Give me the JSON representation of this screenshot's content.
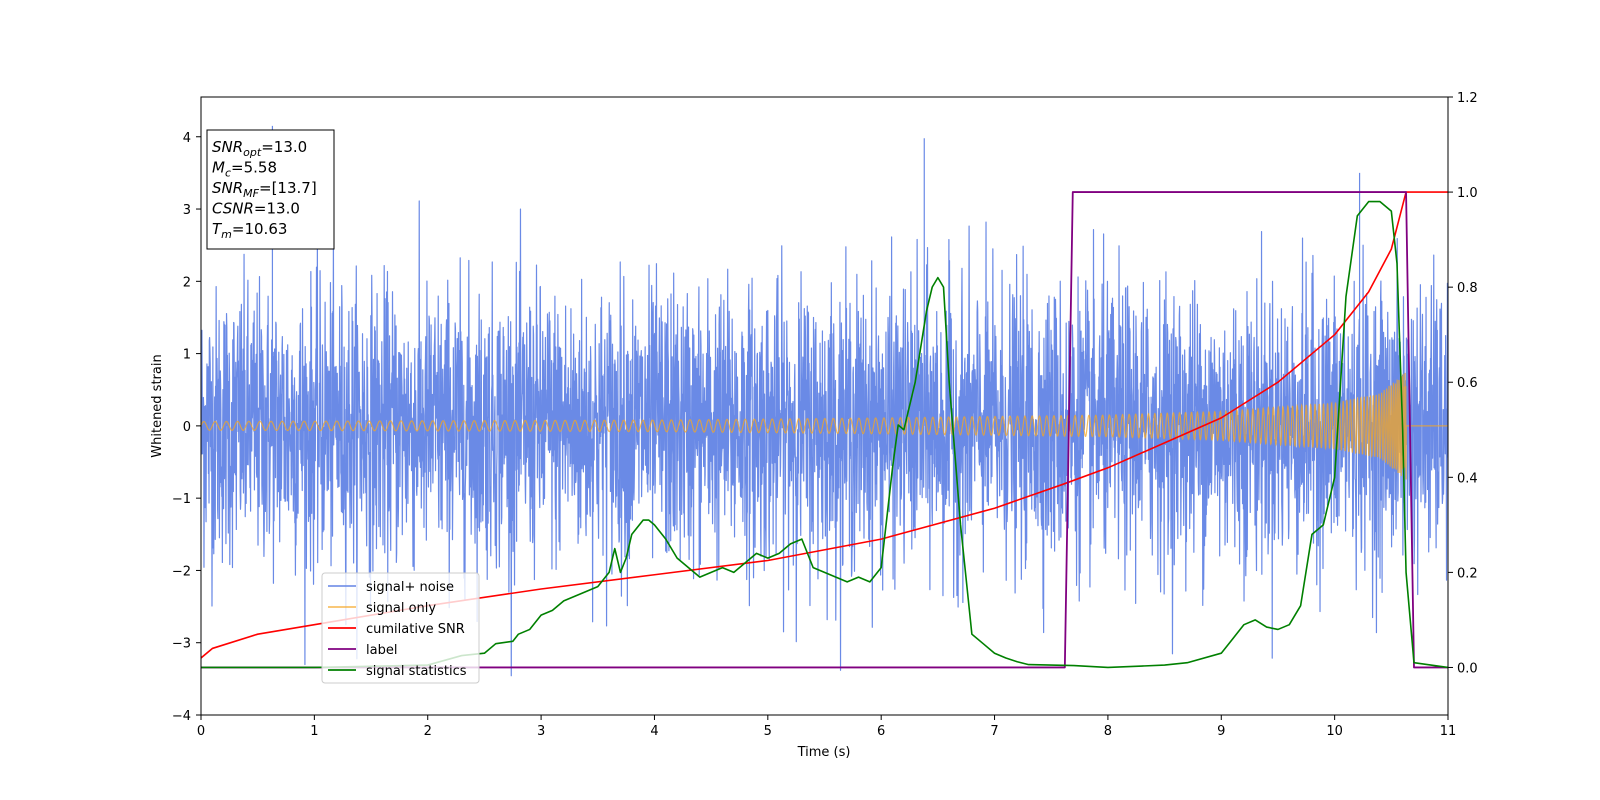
{
  "chart_data": {
    "type": "line",
    "xlabel": "Time (s)",
    "ylabel": "Whitened strain",
    "xlim": [
      0,
      11
    ],
    "ylim": [
      -4,
      4.55
    ],
    "y2lim": [
      -0.1,
      1.2
    ],
    "x_ticks": [
      0,
      1,
      2,
      3,
      4,
      5,
      6,
      7,
      8,
      9,
      10,
      11
    ],
    "y_ticks": [
      -4,
      -3,
      -2,
      -1,
      0,
      1,
      2,
      3,
      4
    ],
    "y2_ticks": [
      0.0,
      0.2,
      0.4,
      0.6,
      0.8,
      1.0,
      1.2
    ],
    "y_tick_labels": [
      "−4",
      "−3",
      "−2",
      "−1",
      "0",
      "1",
      "2",
      "3",
      "4"
    ],
    "y2_tick_labels": [
      "0.0",
      "0.2",
      "0.4",
      "0.6",
      "0.8",
      "1.0",
      "1.2"
    ],
    "grid": false,
    "legend_position": "lower-left",
    "colors": {
      "noise": "#6a8ae6",
      "signal": "#f5a623",
      "cumsnr": "#ff0000",
      "label": "#800080",
      "stats": "#008000"
    },
    "series": [
      {
        "name": "signal+ noise",
        "key": "noise",
        "axis": "left",
        "style": "dense-noise",
        "noise_std": 0.95,
        "description_of_peaks_x": [
          0.63,
          6.38,
          10.22
        ],
        "peaks_y": [
          4.15,
          3.98,
          3.5
        ]
      },
      {
        "name": "signal only",
        "key": "signal",
        "axis": "left",
        "style": "chirp",
        "t_merge": 10.63,
        "envelope": {
          "x": [
            0,
            2,
            4,
            6,
            8,
            9,
            10,
            10.4,
            10.63
          ],
          "amp": [
            0.06,
            0.07,
            0.08,
            0.11,
            0.15,
            0.2,
            0.32,
            0.45,
            0.75
          ]
        }
      },
      {
        "name": "cumilative SNR",
        "key": "cumsnr",
        "axis": "right",
        "x": [
          0,
          0.1,
          0.5,
          1,
          2,
          3,
          4,
          5,
          6,
          7,
          7.6,
          8,
          9,
          9.5,
          10,
          10.3,
          10.5,
          10.63,
          11
        ],
        "y": [
          0.02,
          0.04,
          0.07,
          0.09,
          0.13,
          0.165,
          0.195,
          0.225,
          0.27,
          0.335,
          0.385,
          0.42,
          0.525,
          0.6,
          0.7,
          0.79,
          0.88,
          1.0,
          1.0
        ]
      },
      {
        "name": "label",
        "key": "label",
        "axis": "right",
        "x": [
          0,
          7.62,
          7.69,
          10.63,
          10.7,
          11
        ],
        "y": [
          0,
          0,
          1,
          1,
          0,
          0
        ]
      },
      {
        "name": "signal statistics",
        "key": "stats",
        "axis": "right",
        "x": [
          0,
          1.0,
          2.0,
          2.3,
          2.5,
          2.6,
          2.75,
          2.8,
          2.9,
          3.0,
          3.1,
          3.2,
          3.3,
          3.4,
          3.5,
          3.6,
          3.65,
          3.7,
          3.75,
          3.8,
          3.9,
          3.95,
          4.0,
          4.1,
          4.2,
          4.3,
          4.4,
          4.5,
          4.6,
          4.7,
          4.8,
          4.9,
          5.0,
          5.1,
          5.2,
          5.3,
          5.4,
          5.5,
          5.6,
          5.7,
          5.8,
          5.9,
          6.0,
          6.1,
          6.15,
          6.2,
          6.3,
          6.4,
          6.45,
          6.5,
          6.55,
          6.6,
          6.7,
          6.8,
          6.9,
          7.0,
          7.1,
          7.2,
          7.3,
          7.5,
          7.7,
          8.0,
          8.3,
          8.5,
          8.7,
          9.0,
          9.1,
          9.2,
          9.3,
          9.4,
          9.5,
          9.6,
          9.7,
          9.8,
          9.9,
          10.0,
          10.1,
          10.2,
          10.3,
          10.4,
          10.5,
          10.55,
          10.6,
          10.63,
          10.7,
          11.0
        ],
        "y": [
          0.0,
          0.0,
          0.005,
          0.025,
          0.03,
          0.05,
          0.055,
          0.07,
          0.08,
          0.11,
          0.12,
          0.14,
          0.15,
          0.16,
          0.17,
          0.2,
          0.25,
          0.2,
          0.23,
          0.28,
          0.31,
          0.31,
          0.3,
          0.27,
          0.23,
          0.21,
          0.19,
          0.2,
          0.21,
          0.2,
          0.22,
          0.24,
          0.23,
          0.24,
          0.26,
          0.27,
          0.21,
          0.2,
          0.19,
          0.18,
          0.19,
          0.18,
          0.21,
          0.42,
          0.51,
          0.5,
          0.6,
          0.75,
          0.8,
          0.82,
          0.8,
          0.6,
          0.3,
          0.07,
          0.05,
          0.03,
          0.02,
          0.012,
          0.006,
          0.005,
          0.004,
          0.0,
          0.003,
          0.005,
          0.01,
          0.03,
          0.06,
          0.09,
          0.1,
          0.085,
          0.08,
          0.09,
          0.13,
          0.28,
          0.3,
          0.4,
          0.78,
          0.95,
          0.98,
          0.98,
          0.96,
          0.85,
          0.5,
          0.2,
          0.01,
          0.0
        ]
      }
    ],
    "info_box": [
      {
        "main": "SNR",
        "sub": "opt",
        "rest": "=13.0"
      },
      {
        "main": "M",
        "sub": "c",
        "rest": "=5.58"
      },
      {
        "main": "SNR",
        "sub": "MF",
        "rest": "=[13.7]"
      },
      {
        "main": "CSNR",
        "sub": "",
        "rest": "=13.0"
      },
      {
        "main": "T",
        "sub": "m",
        "rest": "=10.63"
      }
    ]
  }
}
